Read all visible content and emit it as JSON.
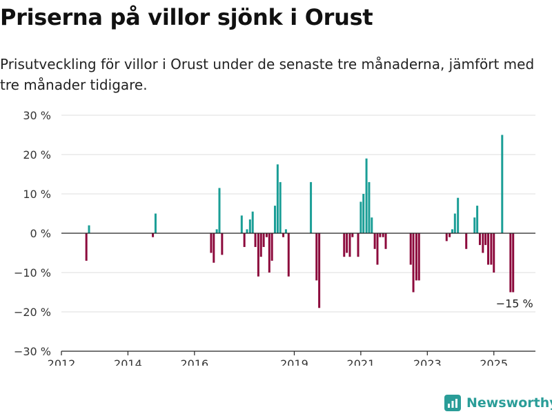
{
  "title": "Priserna på villor sjönk i Orust",
  "subtitle": "Prisutveckling för villor i Orust under de senaste tre månaderna, jämfört med tre månader tidigare.",
  "brand": {
    "name": "Newsworthy",
    "icon": "newsworthy-logo-icon"
  },
  "colors": {
    "positive": "#1a9e96",
    "negative": "#8c0a3c",
    "grid": "#dddddd",
    "axis": "#222222"
  },
  "chart_data": {
    "type": "bar",
    "ylim": [
      -30,
      30
    ],
    "xlim": [
      2012,
      2026.25
    ],
    "ytick_values": [
      30,
      20,
      10,
      0,
      -10,
      -20,
      -30
    ],
    "ytick_labels": [
      "30 %",
      "20 %",
      "10 %",
      "0 %",
      "−10 %",
      "−20 %",
      "−30 %"
    ],
    "xtick_values": [
      2012,
      2014,
      2016,
      2019,
      2021,
      2023,
      2025
    ],
    "xtick_labels": [
      "2012",
      "2014",
      "2016",
      "2019",
      "2021",
      "2023",
      "2025"
    ],
    "grid": true,
    "annotation": {
      "text": "−15 %"
    },
    "values": [
      {
        "x": 2012.75,
        "y": -7
      },
      {
        "x": 2012.83,
        "y": 2
      },
      {
        "x": 2014.75,
        "y": -1
      },
      {
        "x": 2014.83,
        "y": 5
      },
      {
        "x": 2016.5,
        "y": -5
      },
      {
        "x": 2016.58,
        "y": -7.5
      },
      {
        "x": 2016.67,
        "y": 1
      },
      {
        "x": 2016.75,
        "y": 11.5
      },
      {
        "x": 2016.83,
        "y": -5.5
      },
      {
        "x": 2017.42,
        "y": 4.5
      },
      {
        "x": 2017.5,
        "y": -3.5
      },
      {
        "x": 2017.58,
        "y": 1
      },
      {
        "x": 2017.67,
        "y": 3.5
      },
      {
        "x": 2017.75,
        "y": 5.5
      },
      {
        "x": 2017.83,
        "y": -3.5
      },
      {
        "x": 2017.92,
        "y": -11
      },
      {
        "x": 2018.0,
        "y": -6
      },
      {
        "x": 2018.08,
        "y": -3.5
      },
      {
        "x": 2018.17,
        "y": -1
      },
      {
        "x": 2018.25,
        "y": -10
      },
      {
        "x": 2018.33,
        "y": -7
      },
      {
        "x": 2018.42,
        "y": 7
      },
      {
        "x": 2018.5,
        "y": 17.5
      },
      {
        "x": 2018.58,
        "y": 13
      },
      {
        "x": 2018.67,
        "y": -1
      },
      {
        "x": 2018.75,
        "y": 1
      },
      {
        "x": 2018.83,
        "y": -11
      },
      {
        "x": 2019.5,
        "y": 13
      },
      {
        "x": 2019.67,
        "y": -12
      },
      {
        "x": 2019.75,
        "y": -19
      },
      {
        "x": 2020.5,
        "y": -6
      },
      {
        "x": 2020.58,
        "y": -5
      },
      {
        "x": 2020.67,
        "y": -6
      },
      {
        "x": 2020.75,
        "y": -1
      },
      {
        "x": 2020.92,
        "y": -6
      },
      {
        "x": 2021.0,
        "y": 8
      },
      {
        "x": 2021.08,
        "y": 10
      },
      {
        "x": 2021.17,
        "y": 19
      },
      {
        "x": 2021.25,
        "y": 13
      },
      {
        "x": 2021.33,
        "y": 4
      },
      {
        "x": 2021.42,
        "y": -4
      },
      {
        "x": 2021.5,
        "y": -8
      },
      {
        "x": 2021.58,
        "y": -1
      },
      {
        "x": 2021.67,
        "y": -1
      },
      {
        "x": 2021.75,
        "y": -4
      },
      {
        "x": 2022.5,
        "y": -8
      },
      {
        "x": 2022.58,
        "y": -15
      },
      {
        "x": 2022.67,
        "y": -12
      },
      {
        "x": 2022.75,
        "y": -12
      },
      {
        "x": 2023.58,
        "y": -2
      },
      {
        "x": 2023.67,
        "y": -1
      },
      {
        "x": 2023.75,
        "y": 1
      },
      {
        "x": 2023.83,
        "y": 5
      },
      {
        "x": 2023.92,
        "y": 9
      },
      {
        "x": 2024.17,
        "y": -4
      },
      {
        "x": 2024.42,
        "y": 4
      },
      {
        "x": 2024.5,
        "y": 7
      },
      {
        "x": 2024.58,
        "y": -3
      },
      {
        "x": 2024.67,
        "y": -5
      },
      {
        "x": 2024.75,
        "y": -3
      },
      {
        "x": 2024.83,
        "y": -8
      },
      {
        "x": 2024.92,
        "y": -8
      },
      {
        "x": 2025.0,
        "y": -10
      },
      {
        "x": 2025.25,
        "y": 25
      },
      {
        "x": 2025.5,
        "y": -15
      },
      {
        "x": 2025.58,
        "y": -15
      }
    ]
  }
}
